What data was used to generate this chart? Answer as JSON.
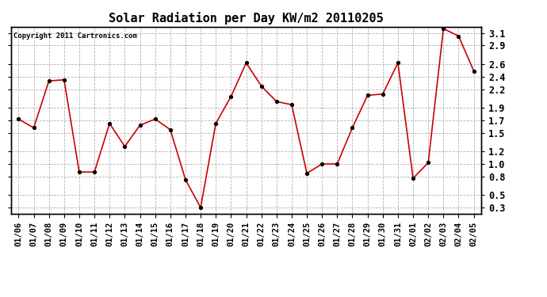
{
  "title": "Solar Radiation per Day KW/m2 20110205",
  "copyright_text": "Copyright 2011 Cartronics.com",
  "dates": [
    "01/06",
    "01/07",
    "01/08",
    "01/09",
    "01/10",
    "01/11",
    "01/12",
    "01/13",
    "01/14",
    "01/15",
    "01/16",
    "01/17",
    "01/18",
    "01/19",
    "01/20",
    "01/21",
    "01/22",
    "01/23",
    "01/24",
    "01/25",
    "01/26",
    "01/27",
    "01/28",
    "01/29",
    "01/30",
    "01/31",
    "02/01",
    "02/02",
    "02/03",
    "02/04",
    "02/05"
  ],
  "values": [
    1.72,
    1.58,
    2.33,
    2.35,
    0.87,
    0.87,
    1.65,
    1.28,
    1.62,
    1.72,
    1.55,
    0.75,
    0.3,
    1.65,
    2.08,
    2.62,
    2.25,
    2.0,
    1.95,
    0.85,
    1.0,
    1.0,
    1.58,
    2.1,
    2.12,
    2.62,
    0.77,
    1.02,
    3.17,
    3.05,
    2.49
  ],
  "line_color": "#cc0000",
  "marker_color": "#000000",
  "bg_color": "#ffffff",
  "grid_color": "#aaaaaa",
  "ylim": [
    0.2,
    3.2
  ],
  "yticks": [
    0.3,
    0.5,
    0.8,
    1.0,
    1.2,
    1.5,
    1.7,
    1.9,
    2.2,
    2.4,
    2.6,
    2.9,
    3.1
  ],
  "title_fontsize": 11,
  "copyright_fontsize": 6.5,
  "tick_fontsize": 7.5,
  "ytick_fontsize": 8.5
}
